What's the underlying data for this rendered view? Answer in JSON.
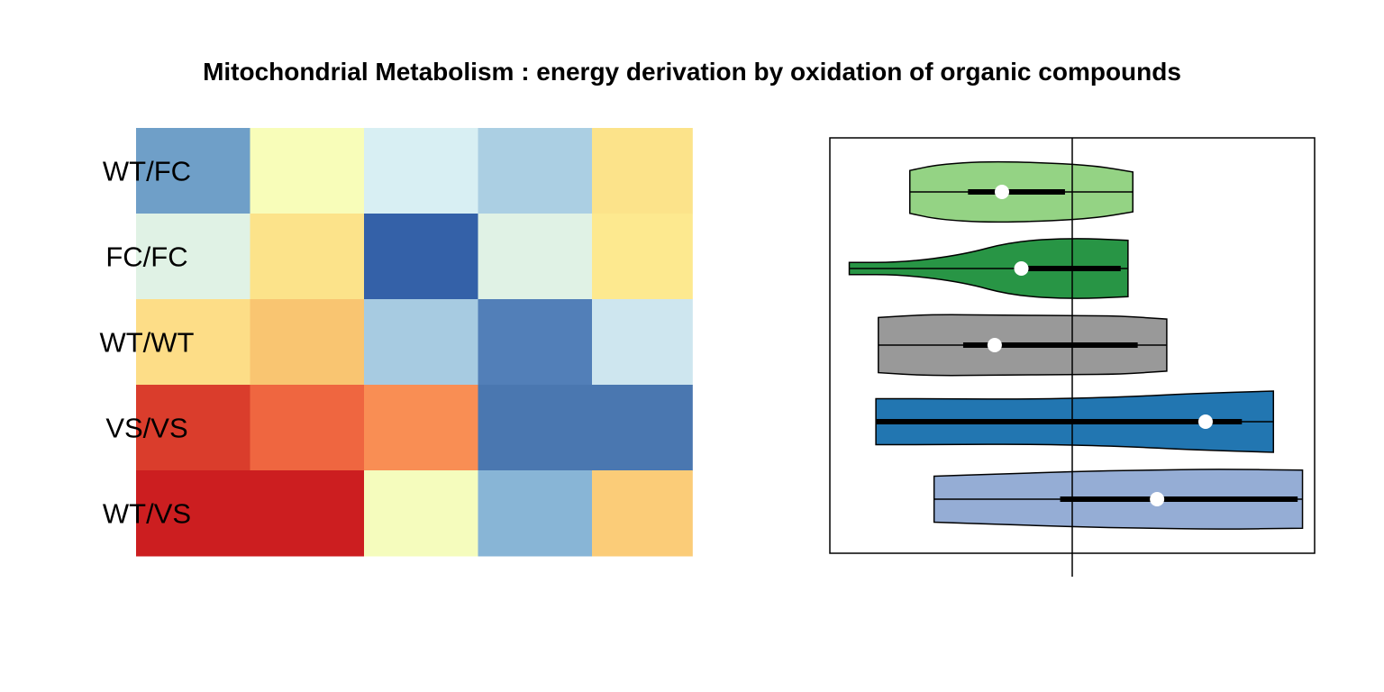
{
  "chart_data": [
    {
      "type": "heatmap",
      "title": "Mitochondrial Metabolism : energy derivation by oxidation of organic compounds",
      "rows": [
        "WT/FC",
        "FC/FC",
        "WT/WT",
        "VS/VS",
        "WT/VS"
      ],
      "columns": [
        {
          "span": 1
        },
        {
          "span": 1
        },
        {
          "span": 1
        },
        {
          "span": 1
        },
        {
          "span": 0.88
        }
      ],
      "cell_colors": [
        [
          "#6f9fc8",
          "#f8fdb9",
          "#d8eff3",
          "#abcfe3",
          "#fce38a"
        ],
        [
          "#e0f2e5",
          "#fce38a",
          "#3461a8",
          "#e0f2e5",
          "#fde98f"
        ],
        [
          "#fddd87",
          "#f9c571",
          "#a7cbe1",
          "#527fb8",
          "#cee6ef"
        ],
        [
          "#da3d2c",
          "#ef6640",
          "#f98e54",
          "#4a77b0",
          "#4a77b0"
        ],
        [
          "#cc1e20",
          "#cc1e20",
          "#f5fcbd",
          "#88b5d6",
          "#fbcc78"
        ]
      ]
    },
    {
      "type": "violin",
      "orientation": "horizontal",
      "xlim": [
        -1,
        1
      ],
      "reference_line": 0,
      "groups": [
        {
          "color": "#94d384",
          "min": -0.67,
          "q1": -0.43,
          "median": -0.29,
          "q3": -0.03,
          "max": 0.25,
          "profile": [
            [
              -0.67,
              0.7
            ],
            [
              -0.55,
              0.9
            ],
            [
              -0.35,
              1.0
            ],
            [
              -0.1,
              0.95
            ],
            [
              0.1,
              0.85
            ],
            [
              0.25,
              0.65
            ]
          ]
        },
        {
          "color": "#289545",
          "min": -0.92,
          "q1": -0.22,
          "median": -0.21,
          "q3": 0.2,
          "max": 0.23,
          "profile": [
            [
              -0.92,
              0.2
            ],
            [
              -0.7,
              0.2
            ],
            [
              -0.45,
              0.45
            ],
            [
              -0.25,
              0.88
            ],
            [
              0.0,
              1.0
            ],
            [
              0.23,
              0.92
            ]
          ]
        },
        {
          "color": "#999999",
          "min": -0.8,
          "q1": -0.45,
          "median": -0.32,
          "q3": 0.27,
          "max": 0.39,
          "profile": [
            [
              -0.8,
              0.9
            ],
            [
              -0.6,
              1.0
            ],
            [
              -0.3,
              0.98
            ],
            [
              0.0,
              0.96
            ],
            [
              0.2,
              0.95
            ],
            [
              0.39,
              0.85
            ]
          ]
        },
        {
          "color": "#2276b1",
          "min": -0.81,
          "q1": -0.81,
          "median": 0.55,
          "q3": 0.7,
          "max": 0.83,
          "profile": [
            [
              -0.81,
              0.75
            ],
            [
              -0.5,
              0.75
            ],
            [
              -0.2,
              0.73
            ],
            [
              0.2,
              0.8
            ],
            [
              0.5,
              0.92
            ],
            [
              0.83,
              1.0
            ]
          ]
        },
        {
          "color": "#95add5",
          "min": -0.57,
          "q1": -0.05,
          "median": 0.35,
          "q3": 0.93,
          "max": 0.95,
          "profile": [
            [
              -0.57,
              0.75
            ],
            [
              -0.3,
              0.82
            ],
            [
              0.0,
              0.9
            ],
            [
              0.3,
              0.95
            ],
            [
              0.6,
              0.98
            ],
            [
              0.95,
              0.95
            ]
          ]
        }
      ]
    }
  ]
}
